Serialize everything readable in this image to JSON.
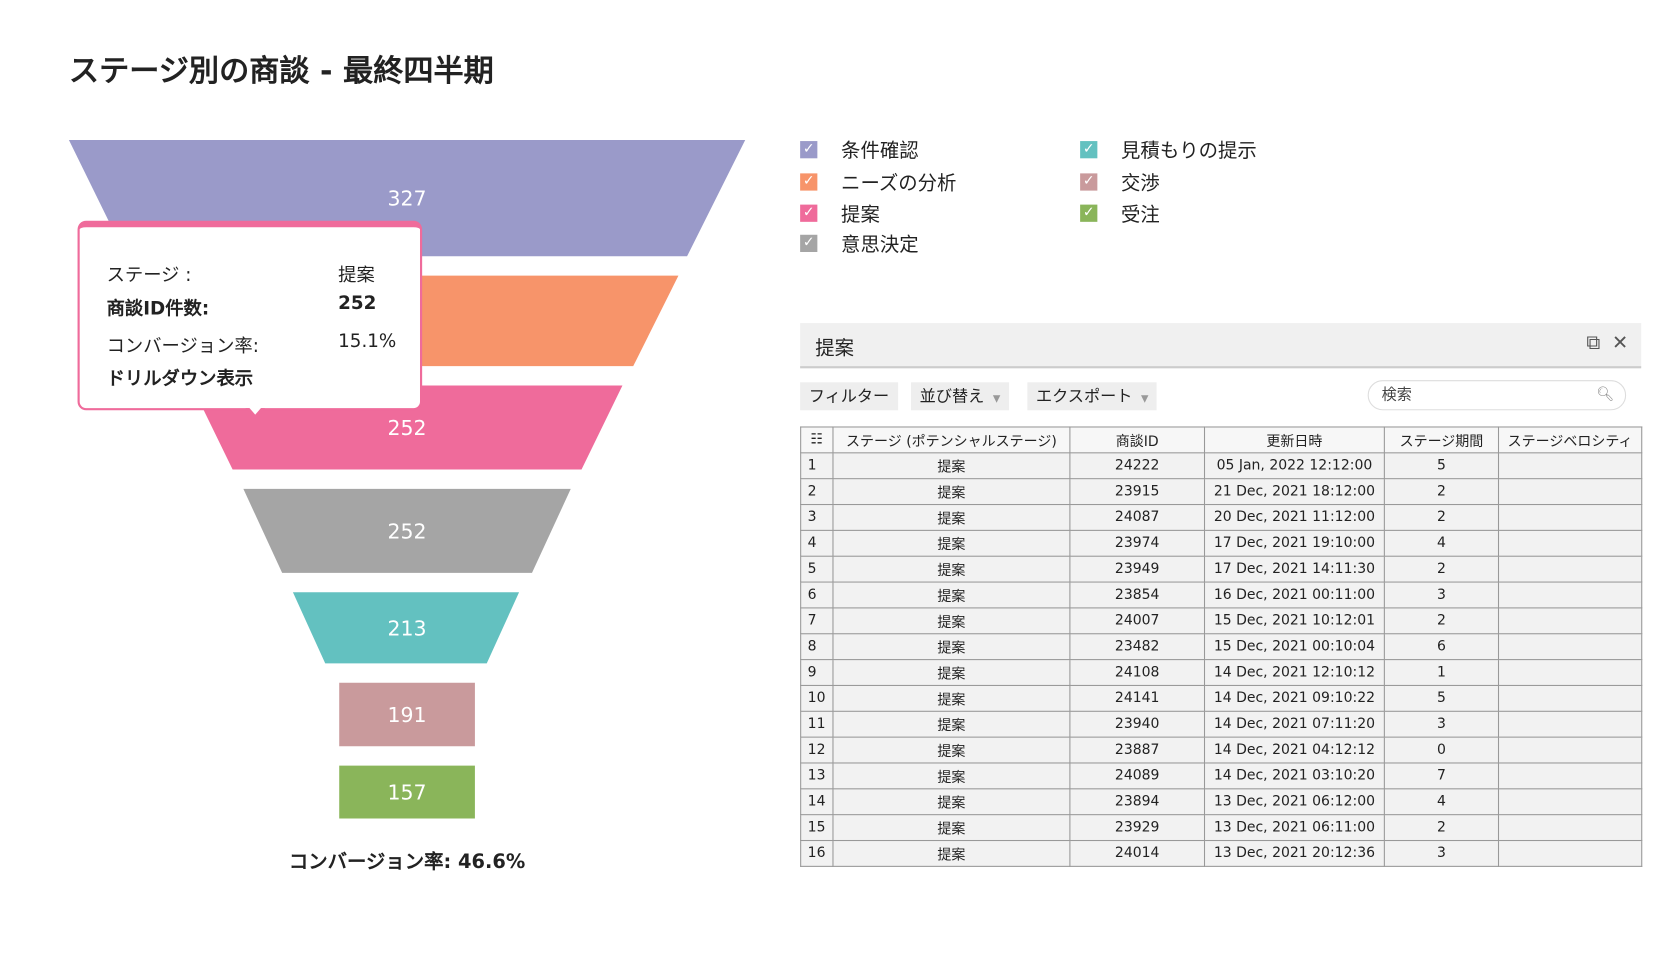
{
  "title": "ステージ別の商談 - 最終四半期",
  "chart_data": {
    "type": "funnel",
    "stages": [
      "条件確認",
      "ニーズの分析",
      "提案",
      "意思決定",
      "見積もりの提示",
      "交渉",
      "受注"
    ],
    "values": [
      327,
      null,
      252,
      252,
      213,
      191,
      157
    ],
    "colors": [
      "#9a9ac9",
      "#f7946a",
      "#ef6b9b",
      "#a5a5a5",
      "#63c1c0",
      "#c99a9c",
      "#8ab55a"
    ]
  },
  "conversion_label": "コンバージョン率: 46.6%",
  "tooltip": {
    "stage_label": "ステージ :",
    "stage_value": "提案",
    "count_label": "商談ID件数:",
    "count_value": "252",
    "rate_label": "コンバージョン率:",
    "rate_value": "15.1%",
    "drill": "ドリルダウン表示"
  },
  "legend": [
    {
      "label": "条件確認",
      "color": "#9a9ac9",
      "checked": true
    },
    {
      "label": "ニーズの分析",
      "color": "#f7946a",
      "checked": true
    },
    {
      "label": "提案",
      "color": "#ef6b9b",
      "checked": true
    },
    {
      "label": "意思決定",
      "color": "#a5a5a5",
      "checked": true
    },
    {
      "label": "見積もりの提示",
      "color": "#63c1c0",
      "checked": true
    },
    {
      "label": "交渉",
      "color": "#c99a9c",
      "checked": true
    },
    {
      "label": "受注",
      "color": "#8ab55a",
      "checked": true
    }
  ],
  "panel": {
    "title": "提案",
    "filter": "フィルター",
    "sort": "並び替え",
    "export": "エクスポート",
    "search_placeholder": "検索",
    "columns": [
      "ステージ (ポテンシャルステージ)",
      "商談ID",
      "更新日時",
      "ステージ期間",
      "ステージベロシティ"
    ],
    "rows": [
      [
        "1",
        "提案",
        "24222",
        "05 Jan, 2022 12:12:00",
        "5",
        ""
      ],
      [
        "2",
        "提案",
        "23915",
        "21 Dec, 2021 18:12:00",
        "2",
        ""
      ],
      [
        "3",
        "提案",
        "24087",
        "20 Dec, 2021 11:12:00",
        "2",
        ""
      ],
      [
        "4",
        "提案",
        "23974",
        "17 Dec, 2021 19:10:00",
        "4",
        ""
      ],
      [
        "5",
        "提案",
        "23949",
        "17 Dec, 2021 14:11:30",
        "2",
        ""
      ],
      [
        "6",
        "提案",
        "23854",
        "16 Dec, 2021 00:11:00",
        "3",
        ""
      ],
      [
        "7",
        "提案",
        "24007",
        "15 Dec, 2021 10:12:01",
        "2",
        ""
      ],
      [
        "8",
        "提案",
        "23482",
        "15 Dec, 2021 00:10:04",
        "6",
        ""
      ],
      [
        "9",
        "提案",
        "24108",
        "14 Dec, 2021 12:10:12",
        "1",
        ""
      ],
      [
        "10",
        "提案",
        "24141",
        "14 Dec, 2021 09:10:22",
        "5",
        ""
      ],
      [
        "11",
        "提案",
        "23940",
        "14 Dec, 2021 07:11:20",
        "3",
        ""
      ],
      [
        "12",
        "提案",
        "23887",
        "14 Dec, 2021 04:12:12",
        "0",
        ""
      ],
      [
        "13",
        "提案",
        "24089",
        "14 Dec, 2021 03:10:20",
        "7",
        ""
      ],
      [
        "14",
        "提案",
        "23894",
        "13 Dec, 2021 06:12:00",
        "4",
        ""
      ],
      [
        "15",
        "提案",
        "23929",
        "13 Dec, 2021 06:11:00",
        "2",
        ""
      ],
      [
        "16",
        "提案",
        "24014",
        "13 Dec, 2021 20:12:36",
        "3",
        ""
      ]
    ]
  }
}
